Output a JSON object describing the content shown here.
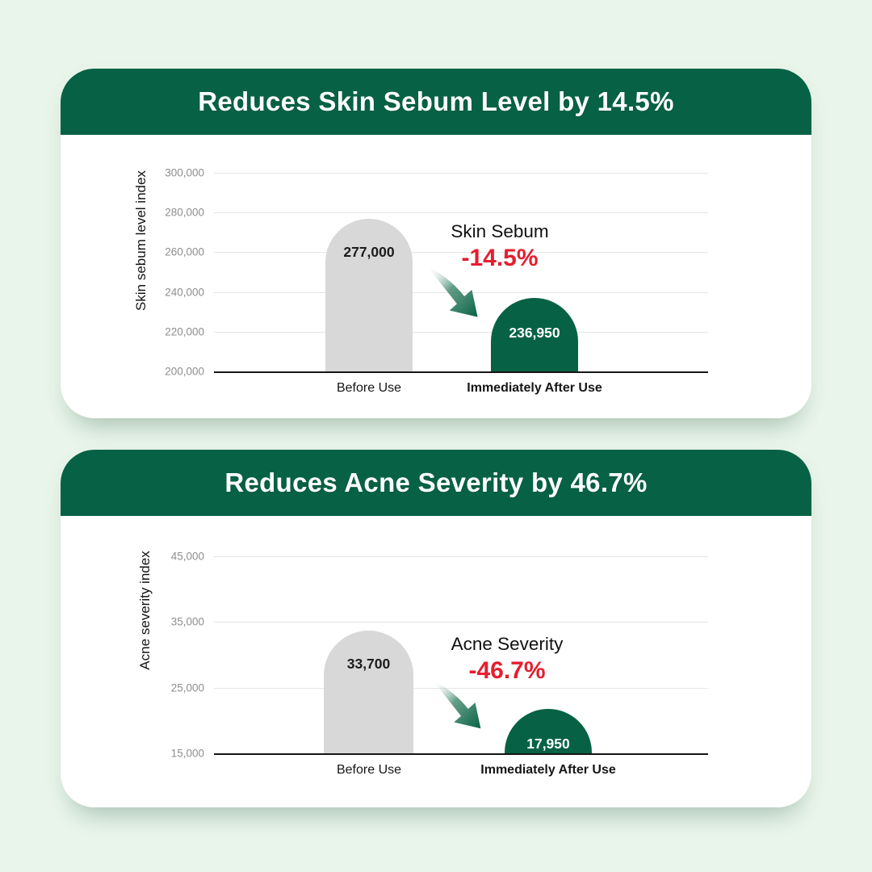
{
  "page": {
    "background_color": "#e9f5eb",
    "accent_green": "#076245",
    "accent_red": "#e51e2e"
  },
  "cards": [
    {
      "title": "Reduces Skin Sebum Level by 14.5%",
      "y_axis_label": "Skin sebum level index",
      "bars": [
        {
          "label": "Before Use",
          "value": "277,000"
        },
        {
          "label": "Immediately After Use",
          "value": "236,950"
        }
      ],
      "annotation": {
        "name": "Skin Sebum",
        "change": "-14.5%"
      }
    },
    {
      "title": "Reduces Acne Severity by 46.7%",
      "y_axis_label": "Acne severity index",
      "bars": [
        {
          "label": "Before Use",
          "value": "33,700"
        },
        {
          "label": "Immediately After Use",
          "value": "17,950"
        }
      ],
      "annotation": {
        "name": "Acne Severity",
        "change": "-46.7%"
      }
    }
  ],
  "chart_data": [
    {
      "type": "bar",
      "title": "Reduces Skin Sebum Level by 14.5%",
      "categories": [
        "Before Use",
        "Immediately After Use"
      ],
      "values": [
        277000,
        236950
      ],
      "xlabel": "",
      "ylabel": "Skin sebum level index",
      "ylim": [
        200000,
        300000
      ],
      "yticks": [
        200000,
        220000,
        240000,
        260000,
        280000,
        300000
      ],
      "grid": true,
      "legend": false,
      "bar_colors": [
        "#d8d8d8",
        "#076245"
      ],
      "annotation": {
        "label": "Skin Sebum",
        "change_pct": -14.5
      }
    },
    {
      "type": "bar",
      "title": "Reduces Acne Severity by 46.7%",
      "categories": [
        "Before Use",
        "Immediately After Use"
      ],
      "values": [
        33700,
        17950
      ],
      "xlabel": "",
      "ylabel": "Acne severity index",
      "ylim": [
        15000,
        45000
      ],
      "yticks": [
        15000,
        25000,
        35000,
        45000
      ],
      "grid": true,
      "legend": false,
      "bar_colors": [
        "#d8d8d8",
        "#076245"
      ],
      "annotation": {
        "label": "Acne Severity",
        "change_pct": -46.7
      }
    }
  ]
}
